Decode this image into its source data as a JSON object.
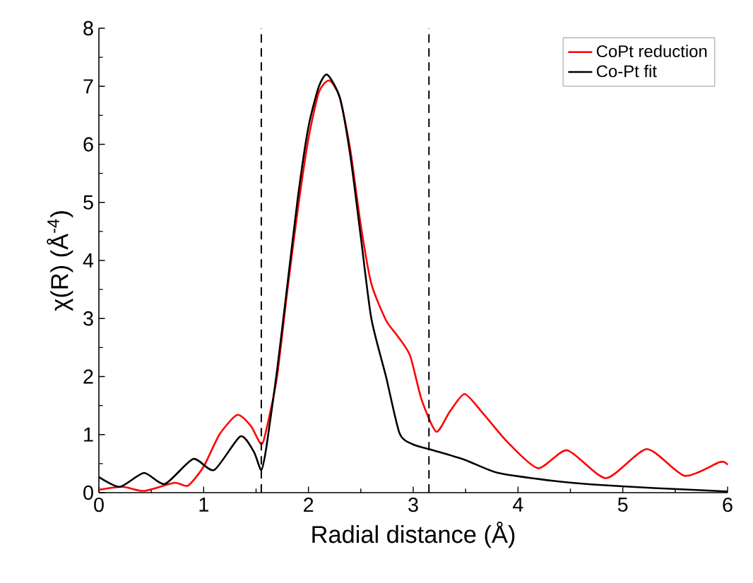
{
  "chart_data": {
    "type": "line",
    "xlabel": "Radial distance (Å)",
    "ylabel": "χ(R) (Å$^{-4}$)",
    "xlim": [
      0,
      6
    ],
    "ylim": [
      0,
      8
    ],
    "xticks": [
      0,
      1,
      2,
      3,
      4,
      5,
      6
    ],
    "yticks": [
      0,
      1,
      2,
      3,
      4,
      5,
      6,
      7,
      8
    ],
    "legend": "top right",
    "grid": false,
    "line_style": "solid",
    "marker": "none",
    "series": [
      {
        "name": "CoPt reduction",
        "color": "#ff0000",
        "x": [
          0,
          0.23,
          0.43,
          0.72,
          0.85,
          1.0,
          1.15,
          1.32,
          1.45,
          1.55,
          1.6,
          1.7,
          1.8,
          1.9,
          2.0,
          2.1,
          2.2,
          2.3,
          2.4,
          2.5,
          2.6,
          2.74,
          2.85,
          2.97,
          3.08,
          3.22,
          3.35,
          3.49,
          3.65,
          3.9,
          4.19,
          4.47,
          4.84,
          5.23,
          5.59,
          5.93,
          6.0
        ],
        "values": [
          0.05,
          0.1,
          0.03,
          0.17,
          0.12,
          0.45,
          1.0,
          1.34,
          1.15,
          0.83,
          1.1,
          2.0,
          3.5,
          4.9,
          6.1,
          6.9,
          7.1,
          6.8,
          5.9,
          4.6,
          3.6,
          2.97,
          2.7,
          2.36,
          1.6,
          1.05,
          1.4,
          1.7,
          1.4,
          0.87,
          0.42,
          0.73,
          0.25,
          0.75,
          0.29,
          0.53,
          0.48
        ]
      },
      {
        "name": "Co-Pt fit",
        "color": "#000000",
        "x": [
          0,
          0.2,
          0.43,
          0.63,
          0.9,
          1.1,
          1.35,
          1.48,
          1.55,
          1.6,
          1.7,
          1.8,
          1.9,
          2.0,
          2.1,
          2.18,
          2.3,
          2.4,
          2.5,
          2.6,
          2.74,
          2.87,
          3.0,
          3.19,
          3.5,
          3.81,
          4.35,
          4.72,
          5.3,
          6.0
        ],
        "values": [
          0.27,
          0.1,
          0.34,
          0.15,
          0.58,
          0.39,
          0.97,
          0.7,
          0.39,
          0.8,
          2.1,
          3.6,
          5.1,
          6.3,
          7.0,
          7.2,
          6.8,
          5.8,
          4.4,
          3.0,
          2.0,
          1.02,
          0.83,
          0.73,
          0.56,
          0.34,
          0.2,
          0.14,
          0.08,
          0.02
        ]
      }
    ],
    "ref_lines": [
      {
        "axis": "x",
        "value": 1.55,
        "color": "#000000",
        "line_style": "dashed"
      },
      {
        "axis": "x",
        "value": 3.15,
        "color": "#000000",
        "line_style": "dashed"
      }
    ]
  }
}
